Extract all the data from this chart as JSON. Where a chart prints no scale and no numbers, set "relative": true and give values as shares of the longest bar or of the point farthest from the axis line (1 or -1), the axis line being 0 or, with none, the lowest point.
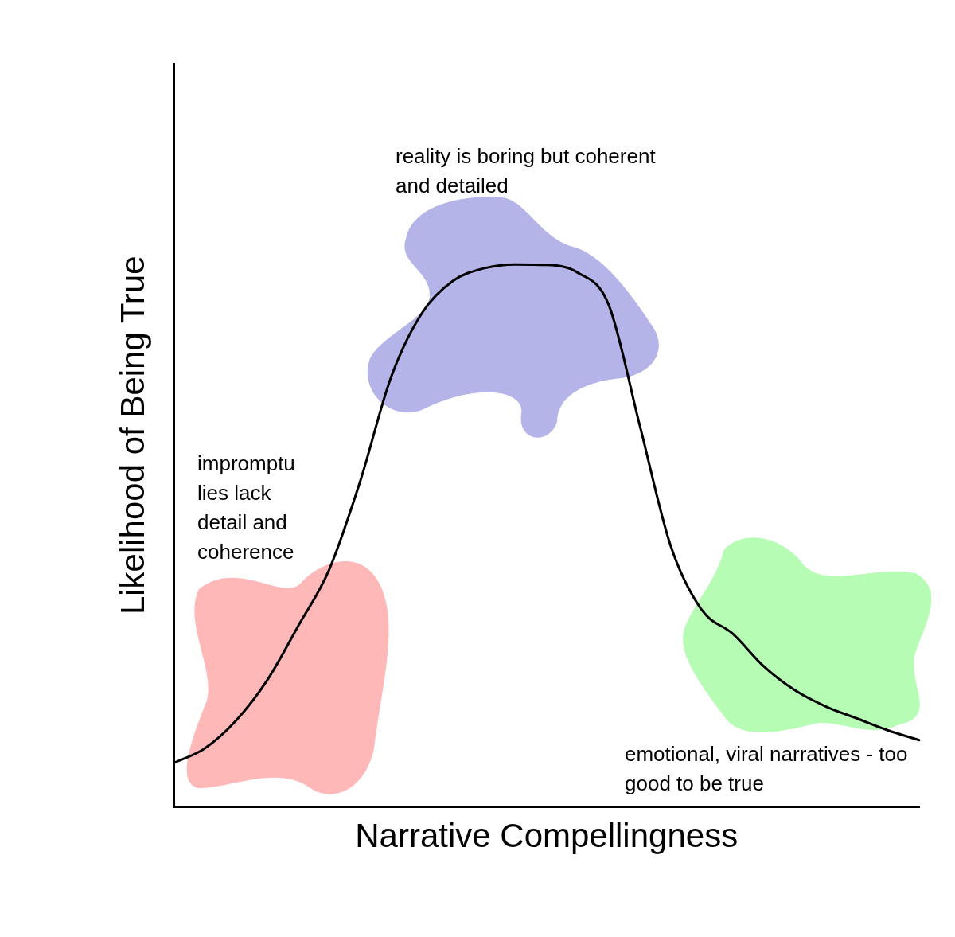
{
  "chart_data": {
    "type": "line",
    "relative": true,
    "xlabel": "Narrative Compellingness",
    "ylabel": "Likelihood of Being True",
    "categories": [
      null,
      null,
      null,
      null,
      null,
      null,
      null,
      null,
      null,
      null,
      null,
      null,
      null,
      null,
      null,
      null,
      null,
      null,
      null,
      null,
      null,
      null,
      null,
      null,
      null
    ],
    "series": [
      {
        "color": "#000000",
        "values": [
          0.081,
          0.108,
          0.159,
          0.233,
          0.333,
          0.437,
          0.6,
          0.793,
          0.911,
          0.97,
          0.993,
          1,
          0.999,
          0.985,
          0.926,
          0.704,
          0.481,
          0.363,
          0.319,
          0.259,
          0.215,
          0.185,
          0.163,
          0.141,
          0.123
        ]
      }
    ],
    "annotations": [
      "reality is boring but coherent and detailed",
      "impromptu lies lack detail and coherence",
      "emotional, viral narratives - too good to be true"
    ],
    "legend": false,
    "grid": false,
    "marker": "none",
    "line_style": "solid"
  }
}
